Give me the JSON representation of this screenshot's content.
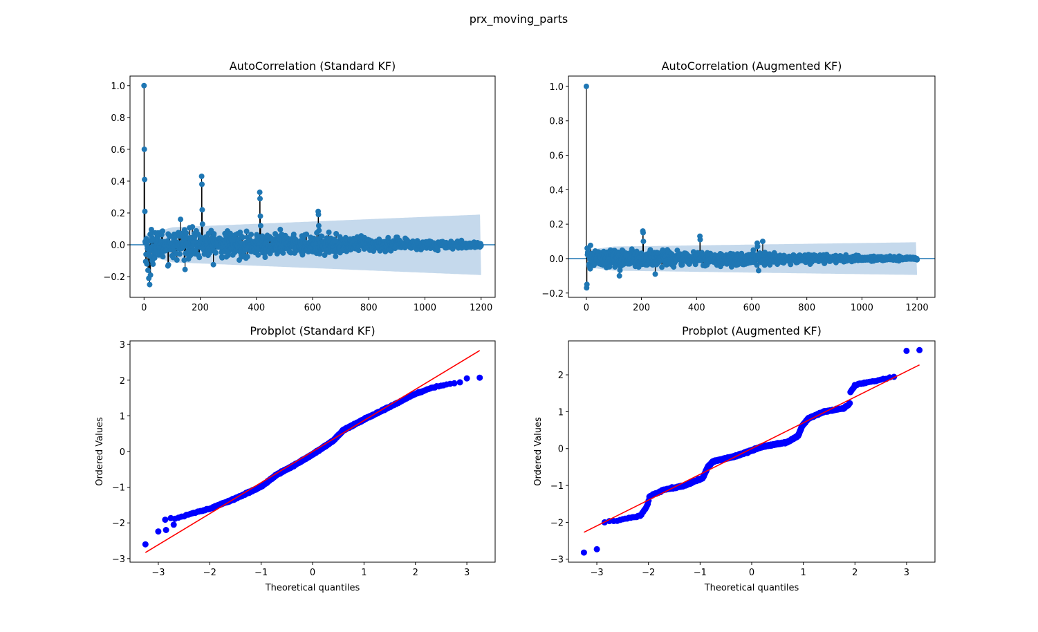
{
  "figure": {
    "suptitle": "prx_moving_parts"
  },
  "colors": {
    "stem": "#1f77b4",
    "band": "#c5d9ec",
    "prob_points": "#0000ff",
    "fit_line": "#ff0000"
  },
  "chart_data": [
    {
      "type": "scatter",
      "kind": "acf-stem",
      "title": "AutoCorrelation (Standard KF)",
      "xlabel": "",
      "ylabel": "",
      "xlim": [
        -50,
        1250
      ],
      "ylim": [
        -0.33,
        1.06
      ],
      "xticks": [
        0,
        200,
        400,
        600,
        800,
        1000,
        1200
      ],
      "yticks": [
        -0.2,
        0.0,
        0.2,
        0.4,
        0.6,
        0.8,
        1.0
      ],
      "tick_labels": {
        "x": [
          "0",
          "200",
          "400",
          "600",
          "800",
          "1000",
          "1200"
        ],
        "y": [
          "−0.2",
          "0.0",
          "0.2",
          "0.4",
          "0.6",
          "0.8",
          "1.0"
        ]
      },
      "n_lags": 1200,
      "notable_lags": [
        {
          "lag": 0,
          "value": 1.0
        },
        {
          "lag": 1,
          "value": 0.6
        },
        {
          "lag": 2,
          "value": 0.41
        },
        {
          "lag": 3,
          "value": 0.21
        },
        {
          "lag": 4,
          "value": 0.02
        },
        {
          "lag": 7,
          "value": -0.06
        },
        {
          "lag": 10,
          "value": -0.12
        },
        {
          "lag": 14,
          "value": -0.16
        },
        {
          "lag": 17,
          "value": -0.21
        },
        {
          "lag": 20,
          "value": -0.25
        },
        {
          "lag": 23,
          "value": -0.19
        },
        {
          "lag": 130,
          "value": 0.16
        },
        {
          "lag": 205,
          "value": 0.43
        },
        {
          "lag": 206,
          "value": 0.38
        },
        {
          "lag": 207,
          "value": 0.22
        },
        {
          "lag": 208,
          "value": 0.13
        },
        {
          "lag": 412,
          "value": 0.33
        },
        {
          "lag": 413,
          "value": 0.29
        },
        {
          "lag": 414,
          "value": 0.18
        },
        {
          "lag": 415,
          "value": 0.12
        },
        {
          "lag": 620,
          "value": 0.21
        },
        {
          "lag": 621,
          "value": 0.19
        },
        {
          "lag": 622,
          "value": 0.12
        },
        {
          "lag": 623,
          "value": 0.09
        }
      ],
      "noise_amplitude_start": 0.11,
      "noise_amplitude_end": 0.015,
      "confidence_band": {
        "start": 0.06,
        "plateau_lag": 100,
        "plateau": 0.11,
        "end_lag": 1200,
        "end": 0.19
      }
    },
    {
      "type": "scatter",
      "kind": "acf-stem",
      "title": "AutoCorrelation (Augmented KF)",
      "xlabel": "",
      "ylabel": "",
      "xlim": [
        -65,
        1265
      ],
      "ylim": [
        -0.225,
        1.06
      ],
      "xticks": [
        0,
        200,
        400,
        600,
        800,
        1000,
        1200
      ],
      "yticks": [
        -0.2,
        0.0,
        0.2,
        0.4,
        0.6,
        0.8,
        1.0
      ],
      "tick_labels": {
        "x": [
          "0",
          "200",
          "400",
          "600",
          "800",
          "1000",
          "1200"
        ],
        "y": [
          "−0.2",
          "0.0",
          "0.2",
          "0.4",
          "0.6",
          "0.8",
          "1.0"
        ]
      },
      "n_lags": 1200,
      "notable_lags": [
        {
          "lag": 0,
          "value": 1.0
        },
        {
          "lag": 1,
          "value": -0.17
        },
        {
          "lag": 2,
          "value": -0.15
        },
        {
          "lag": 3,
          "value": 0.06
        },
        {
          "lag": 205,
          "value": 0.16
        },
        {
          "lag": 206,
          "value": 0.15
        },
        {
          "lag": 207,
          "value": 0.1
        },
        {
          "lag": 412,
          "value": 0.13
        },
        {
          "lag": 413,
          "value": 0.11
        },
        {
          "lag": 620,
          "value": 0.09
        },
        {
          "lag": 621,
          "value": 0.07
        },
        {
          "lag": 640,
          "value": 0.1
        },
        {
          "lag": 120,
          "value": -0.1
        },
        {
          "lag": 250,
          "value": -0.09
        },
        {
          "lag": 625,
          "value": -0.07
        }
      ],
      "noise_amplitude_start": 0.06,
      "noise_amplitude_end": 0.008,
      "confidence_band": {
        "start": 0.05,
        "plateau_lag": 100,
        "plateau": 0.07,
        "end_lag": 1200,
        "end": 0.095
      }
    },
    {
      "type": "scatter",
      "kind": "probplot",
      "title": "Probplot (Standard KF)",
      "xlabel": "Theoretical quantiles",
      "ylabel": "Ordered Values",
      "xlim": [
        -3.55,
        3.55
      ],
      "ylim": [
        -3.1,
        3.1
      ],
      "xticks": [
        -3,
        -2,
        -1,
        0,
        1,
        2,
        3
      ],
      "yticks": [
        -3,
        -2,
        -1,
        0,
        1,
        2,
        3
      ],
      "tick_labels": {
        "x": [
          "−3",
          "−2",
          "−1",
          "0",
          "1",
          "2",
          "3"
        ],
        "y": [
          "−3",
          "−2",
          "−1",
          "0",
          "1",
          "2",
          "3"
        ]
      },
      "fit_line": {
        "x": [
          -3.25,
          3.25
        ],
        "y": [
          -2.83,
          2.83
        ]
      },
      "n_points": 1201,
      "curve": [
        [
          -2.9,
          -1.92
        ],
        [
          -2.6,
          -1.85
        ],
        [
          -2.3,
          -1.72
        ],
        [
          -2.0,
          -1.6
        ],
        [
          -1.5,
          -1.32
        ],
        [
          -1.0,
          -0.98
        ],
        [
          -0.7,
          -0.65
        ],
        [
          -0.4,
          -0.42
        ],
        [
          0.0,
          -0.08
        ],
        [
          0.4,
          0.3
        ],
        [
          0.6,
          0.6
        ],
        [
          1.0,
          0.9
        ],
        [
          1.5,
          1.25
        ],
        [
          1.9,
          1.55
        ],
        [
          2.3,
          1.78
        ],
        [
          2.6,
          1.88
        ],
        [
          2.9,
          1.95
        ]
      ],
      "outliers": [
        [
          -3.25,
          -2.6
        ],
        [
          -3.0,
          -2.24
        ],
        [
          -2.85,
          -2.2
        ],
        [
          -2.7,
          -2.05
        ],
        [
          3.0,
          2.05
        ],
        [
          3.25,
          2.07
        ]
      ]
    },
    {
      "type": "scatter",
      "kind": "probplot",
      "title": "Probplot (Augmented KF)",
      "xlabel": "Theoretical quantiles",
      "ylabel": "Ordered Values",
      "xlim": [
        -3.55,
        3.55
      ],
      "ylim": [
        -3.08,
        2.92
      ],
      "xticks": [
        -3,
        -2,
        -1,
        0,
        1,
        2,
        3
      ],
      "yticks": [
        -3,
        -2,
        -1,
        0,
        1,
        2
      ],
      "tick_labels": {
        "x": [
          "−3",
          "−2",
          "−1",
          "0",
          "1",
          "2",
          "3"
        ],
        "y": [
          "−3",
          "−2",
          "−1",
          "0",
          "1",
          "2"
        ]
      },
      "fit_line": {
        "x": [
          -3.25,
          3.25
        ],
        "y": [
          -2.27,
          2.27
        ]
      },
      "n_points": 1201,
      "curve": [
        [
          -2.85,
          -2.0
        ],
        [
          -2.5,
          -1.92
        ],
        [
          -2.15,
          -1.82
        ],
        [
          -2.02,
          -1.55
        ],
        [
          -1.98,
          -1.3
        ],
        [
          -1.7,
          -1.12
        ],
        [
          -1.3,
          -1.0
        ],
        [
          -0.95,
          -0.8
        ],
        [
          -0.85,
          -0.5
        ],
        [
          -0.75,
          -0.35
        ],
        [
          -0.3,
          -0.2
        ],
        [
          0.2,
          0.05
        ],
        [
          0.7,
          0.18
        ],
        [
          0.9,
          0.35
        ],
        [
          0.98,
          0.62
        ],
        [
          1.1,
          0.82
        ],
        [
          1.4,
          1.0
        ],
        [
          1.8,
          1.1
        ],
        [
          1.9,
          1.22
        ],
        [
          1.9,
          1.5
        ],
        [
          2.0,
          1.72
        ],
        [
          2.4,
          1.84
        ],
        [
          2.85,
          1.98
        ]
      ],
      "outliers": [
        [
          -3.25,
          -2.82
        ],
        [
          -3.0,
          -2.73
        ],
        [
          -2.85,
          -2.0
        ],
        [
          3.0,
          2.65
        ],
        [
          3.25,
          2.67
        ]
      ]
    }
  ]
}
